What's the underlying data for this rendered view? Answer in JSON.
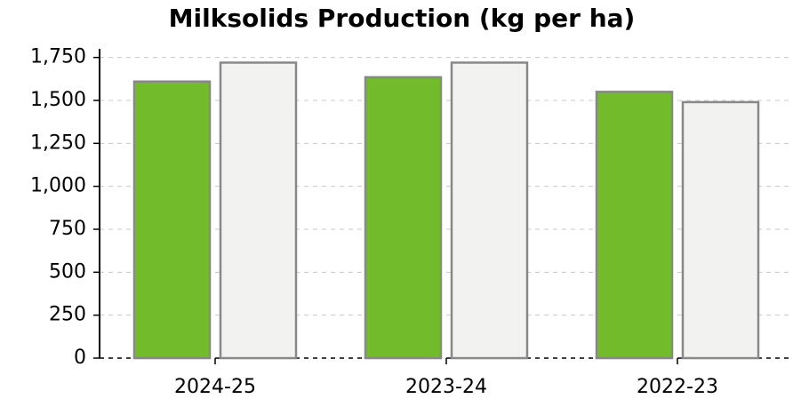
{
  "chart_data": {
    "type": "bar",
    "title": "Milksolids Production (kg per ha)",
    "categories": [
      "2024-25",
      "2023-24",
      "2022-23"
    ],
    "series": [
      {
        "color": "#72bb2a",
        "values": [
          1610,
          1635,
          1550
        ]
      },
      {
        "color": "#f2f3f1",
        "values": [
          1720,
          1720,
          1490
        ]
      }
    ],
    "ylim": [
      0,
      1800
    ],
    "yticks": [
      0,
      250,
      500,
      750,
      {
        "value": 1000,
        "label": "1,000"
      },
      {
        "value": 1250,
        "label": "1,250"
      },
      {
        "value": 1500,
        "label": "1,500"
      },
      {
        "value": 1750,
        "label": "1,750"
      }
    ],
    "grid": true
  }
}
